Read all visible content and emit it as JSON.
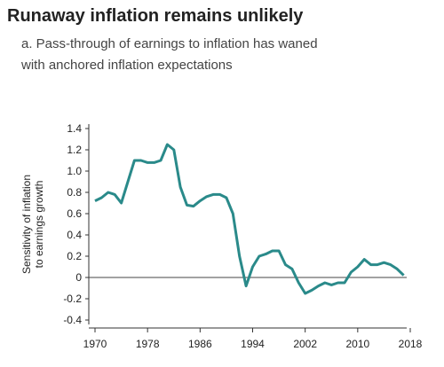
{
  "chart_data": {
    "type": "line",
    "title": "Runaway inflation remains unlikely",
    "subtitle": [
      "a. Pass-through of earnings to inflation has waned",
      "with anchored inflation expectations"
    ],
    "y_label": [
      "Sensitivity of inflation",
      "to earnings growth"
    ],
    "x": [
      1970,
      1971,
      1972,
      1973,
      1974,
      1975,
      1976,
      1977,
      1978,
      1979,
      1980,
      1981,
      1982,
      1983,
      1984,
      1985,
      1986,
      1987,
      1988,
      1989,
      1990,
      1991,
      1992,
      1993,
      1994,
      1995,
      1996,
      1997,
      1998,
      1999,
      2000,
      2001,
      2002,
      2003,
      2004,
      2005,
      2006,
      2007,
      2008,
      2009,
      2010,
      2011,
      2012,
      2013,
      2014,
      2015,
      2016,
      2017
    ],
    "series": [
      {
        "color": "#2a8a8a",
        "values": [
          0.72,
          0.75,
          0.8,
          0.78,
          0.7,
          0.9,
          1.1,
          1.1,
          1.08,
          1.08,
          1.1,
          1.25,
          1.2,
          0.85,
          0.68,
          0.67,
          0.72,
          0.76,
          0.78,
          0.78,
          0.75,
          0.6,
          0.2,
          -0.08,
          0.1,
          0.2,
          0.22,
          0.25,
          0.25,
          0.12,
          0.08,
          -0.05,
          -0.15,
          -0.12,
          -0.08,
          -0.05,
          -0.07,
          -0.05,
          -0.05,
          0.05,
          0.1,
          0.17,
          0.12,
          0.12,
          0.14,
          0.12,
          0.08,
          0.02
        ]
      }
    ],
    "xlim": [
      1970,
      2018
    ],
    "xticks": [
      1970,
      1978,
      1986,
      1994,
      2002,
      2010,
      2018
    ],
    "ylim": [
      -0.4,
      1.4
    ],
    "yticks": [
      -0.4,
      -0.2,
      0,
      0.2,
      0.4,
      0.6,
      0.8,
      {
        "value": 1,
        "label": "1.0"
      },
      1.2,
      1.4
    ]
  }
}
